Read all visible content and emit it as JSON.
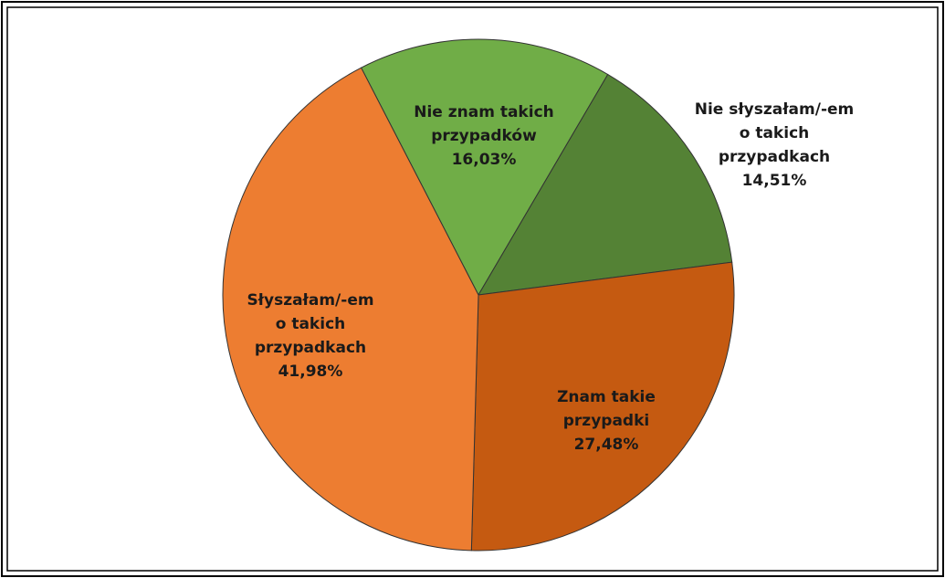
{
  "chart_data": {
    "type": "pie",
    "categories": [
      "Nie znam takich\nprzypadków",
      "Nie słyszałam/-em\no takich\nprzypadkach",
      "Znam takie\nprzypadki",
      "Słyszałam/-em\no takich\nprzypadkach"
    ],
    "values": [
      16.03,
      14.51,
      27.48,
      41.98
    ],
    "value_labels": [
      "16,03%",
      "14,51%",
      "27,48%",
      "41,98%"
    ],
    "colors": [
      "#70ad47",
      "#548235",
      "#c55a11",
      "#ed7d31"
    ]
  }
}
